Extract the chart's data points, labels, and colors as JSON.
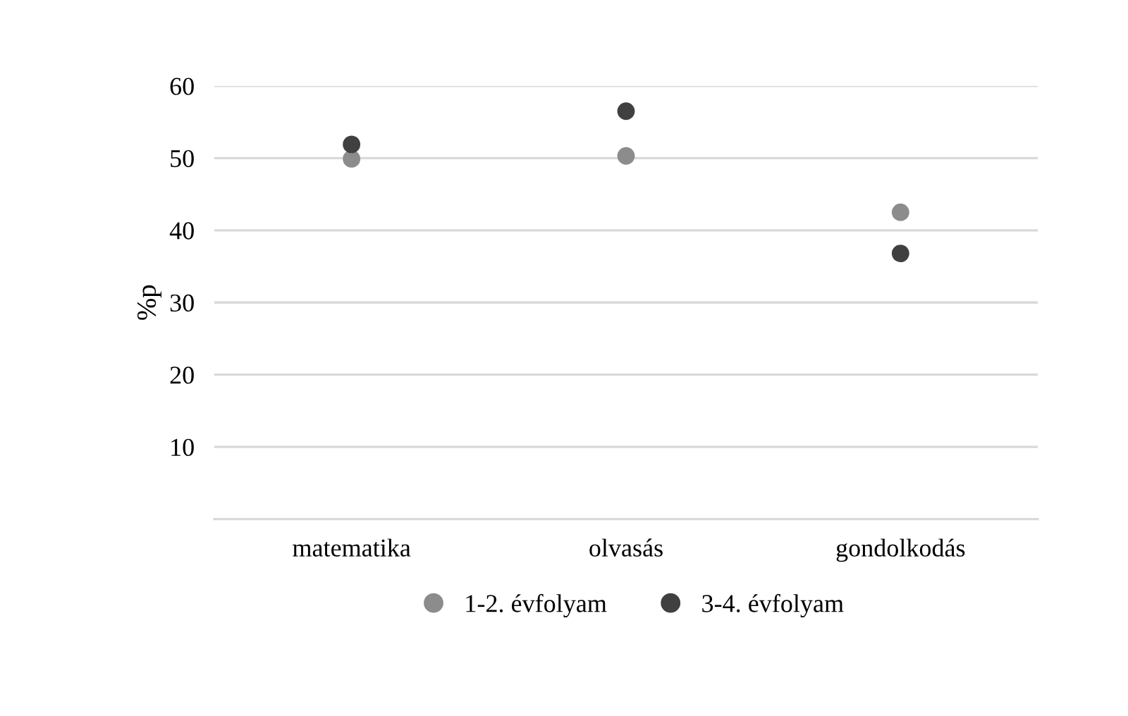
{
  "chart_data": {
    "type": "scatter",
    "ylabel": "%p",
    "categories": [
      "matematika",
      "olvasás",
      "gondolkodás"
    ],
    "series": [
      {
        "name": "1-2. évfolyam",
        "color": "#8c8c8c",
        "values": [
          49.9,
          50.3,
          42.5
        ]
      },
      {
        "name": "3-4. évfolyam",
        "color": "#404040",
        "values": [
          51.9,
          56.5,
          36.8
        ]
      }
    ],
    "ylim": [
      0,
      60
    ],
    "yticks": [
      10,
      20,
      30,
      40,
      50,
      60
    ],
    "grid": "y",
    "legend": "bottom",
    "marker": "circle"
  }
}
